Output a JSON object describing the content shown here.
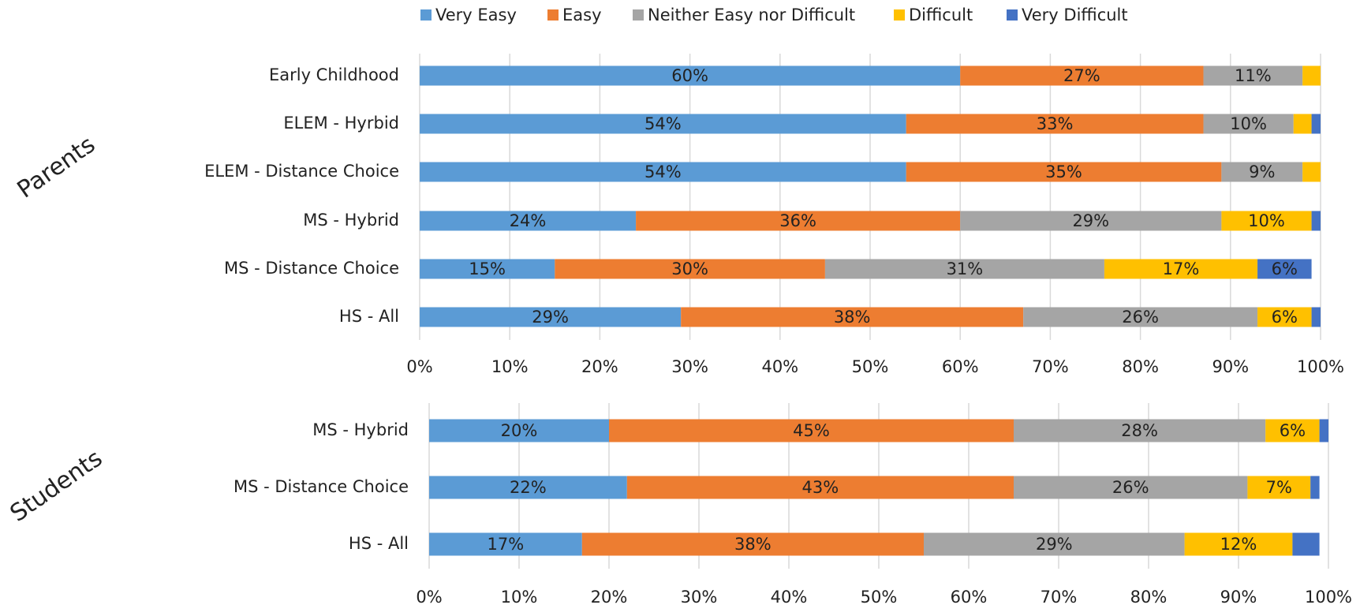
{
  "chart_data": [
    {
      "type": "stacked_barh",
      "group_label": "Parents",
      "categories": [
        "Early Childhood",
        "ELEM - Hyrbid",
        "ELEM - Distance Choice",
        "MS - Hybrid",
        "MS - Distance Choice",
        "HS - All"
      ],
      "series": [
        {
          "name": "Very Easy",
          "color": "#5b9bd5",
          "values": [
            60,
            54,
            54,
            24,
            15,
            29
          ],
          "value_labels": [
            "60%",
            "54%",
            "54%",
            "24%",
            "15%",
            "29%"
          ]
        },
        {
          "name": "Easy",
          "color": "#ed7d31",
          "values": [
            27,
            33,
            35,
            36,
            30,
            38
          ],
          "value_labels": [
            "27%",
            "33%",
            "35%",
            "36%",
            "30%",
            "38%"
          ]
        },
        {
          "name": "Neither Easy nor Difficult",
          "color": "#a5a5a5",
          "values": [
            11,
            10,
            9,
            29,
            31,
            26
          ],
          "value_labels": [
            "11%",
            "10%",
            "9%",
            "29%",
            "31%",
            "26%"
          ]
        },
        {
          "name": "Difficult",
          "color": "#ffc000",
          "values": [
            2,
            2,
            2,
            10,
            17,
            6
          ],
          "value_labels": [
            null,
            null,
            null,
            "10%",
            "17%",
            "6%"
          ]
        },
        {
          "name": "Very Difficult",
          "color": "#4472c4",
          "values": [
            0,
            1,
            0,
            2,
            6,
            1
          ],
          "value_labels": [
            null,
            null,
            null,
            null,
            "6%",
            null
          ]
        }
      ],
      "xlim": [
        0,
        100
      ],
      "xticks": [
        {
          "value": 0,
          "label": "0%"
        },
        {
          "value": 10,
          "label": "10%"
        },
        {
          "value": 20,
          "label": "20%"
        },
        {
          "value": 30,
          "label": "30%"
        },
        {
          "value": 40,
          "label": "40%"
        },
        {
          "value": 50,
          "label": "50%"
        },
        {
          "value": 60,
          "label": "60%"
        },
        {
          "value": 70,
          "label": "70%"
        },
        {
          "value": 80,
          "label": "80%"
        },
        {
          "value": 90,
          "label": "90%"
        },
        {
          "value": 100,
          "label": "100%"
        }
      ],
      "grid": true,
      "legend": "top"
    },
    {
      "type": "stacked_barh",
      "group_label": "Students",
      "categories": [
        "MS - Hybrid",
        "MS - Distance Choice",
        "HS - All"
      ],
      "series": [
        {
          "color": "#5b9bd5",
          "values": [
            20,
            22,
            17
          ],
          "value_labels": [
            "20%",
            "22%",
            "17%"
          ]
        },
        {
          "color": "#ed7d31",
          "values": [
            45,
            43,
            38
          ],
          "value_labels": [
            "45%",
            "43%",
            "38%"
          ]
        },
        {
          "color": "#a5a5a5",
          "values": [
            28,
            26,
            29
          ],
          "value_labels": [
            "28%",
            "26%",
            "29%"
          ]
        },
        {
          "color": "#ffc000",
          "values": [
            6,
            7,
            12
          ],
          "value_labels": [
            "6%",
            "7%",
            "12%"
          ]
        },
        {
          "color": "#4472c4",
          "values": [
            1,
            1,
            3
          ],
          "value_labels": [
            null,
            null,
            null
          ]
        }
      ],
      "xlim": [
        0,
        100
      ],
      "xticks": [
        {
          "value": 0,
          "label": "0%"
        },
        {
          "value": 10,
          "label": "10%"
        },
        {
          "value": 20,
          "label": "20%"
        },
        {
          "value": 30,
          "label": "30%"
        },
        {
          "value": 40,
          "label": "40%"
        },
        {
          "value": 50,
          "label": "50%"
        },
        {
          "value": 60,
          "label": "60%"
        },
        {
          "value": 70,
          "label": "70%"
        },
        {
          "value": 80,
          "label": "80%"
        },
        {
          "value": 90,
          "label": "90%"
        },
        {
          "value": 100,
          "label": "100%"
        }
      ],
      "grid": true
    }
  ]
}
